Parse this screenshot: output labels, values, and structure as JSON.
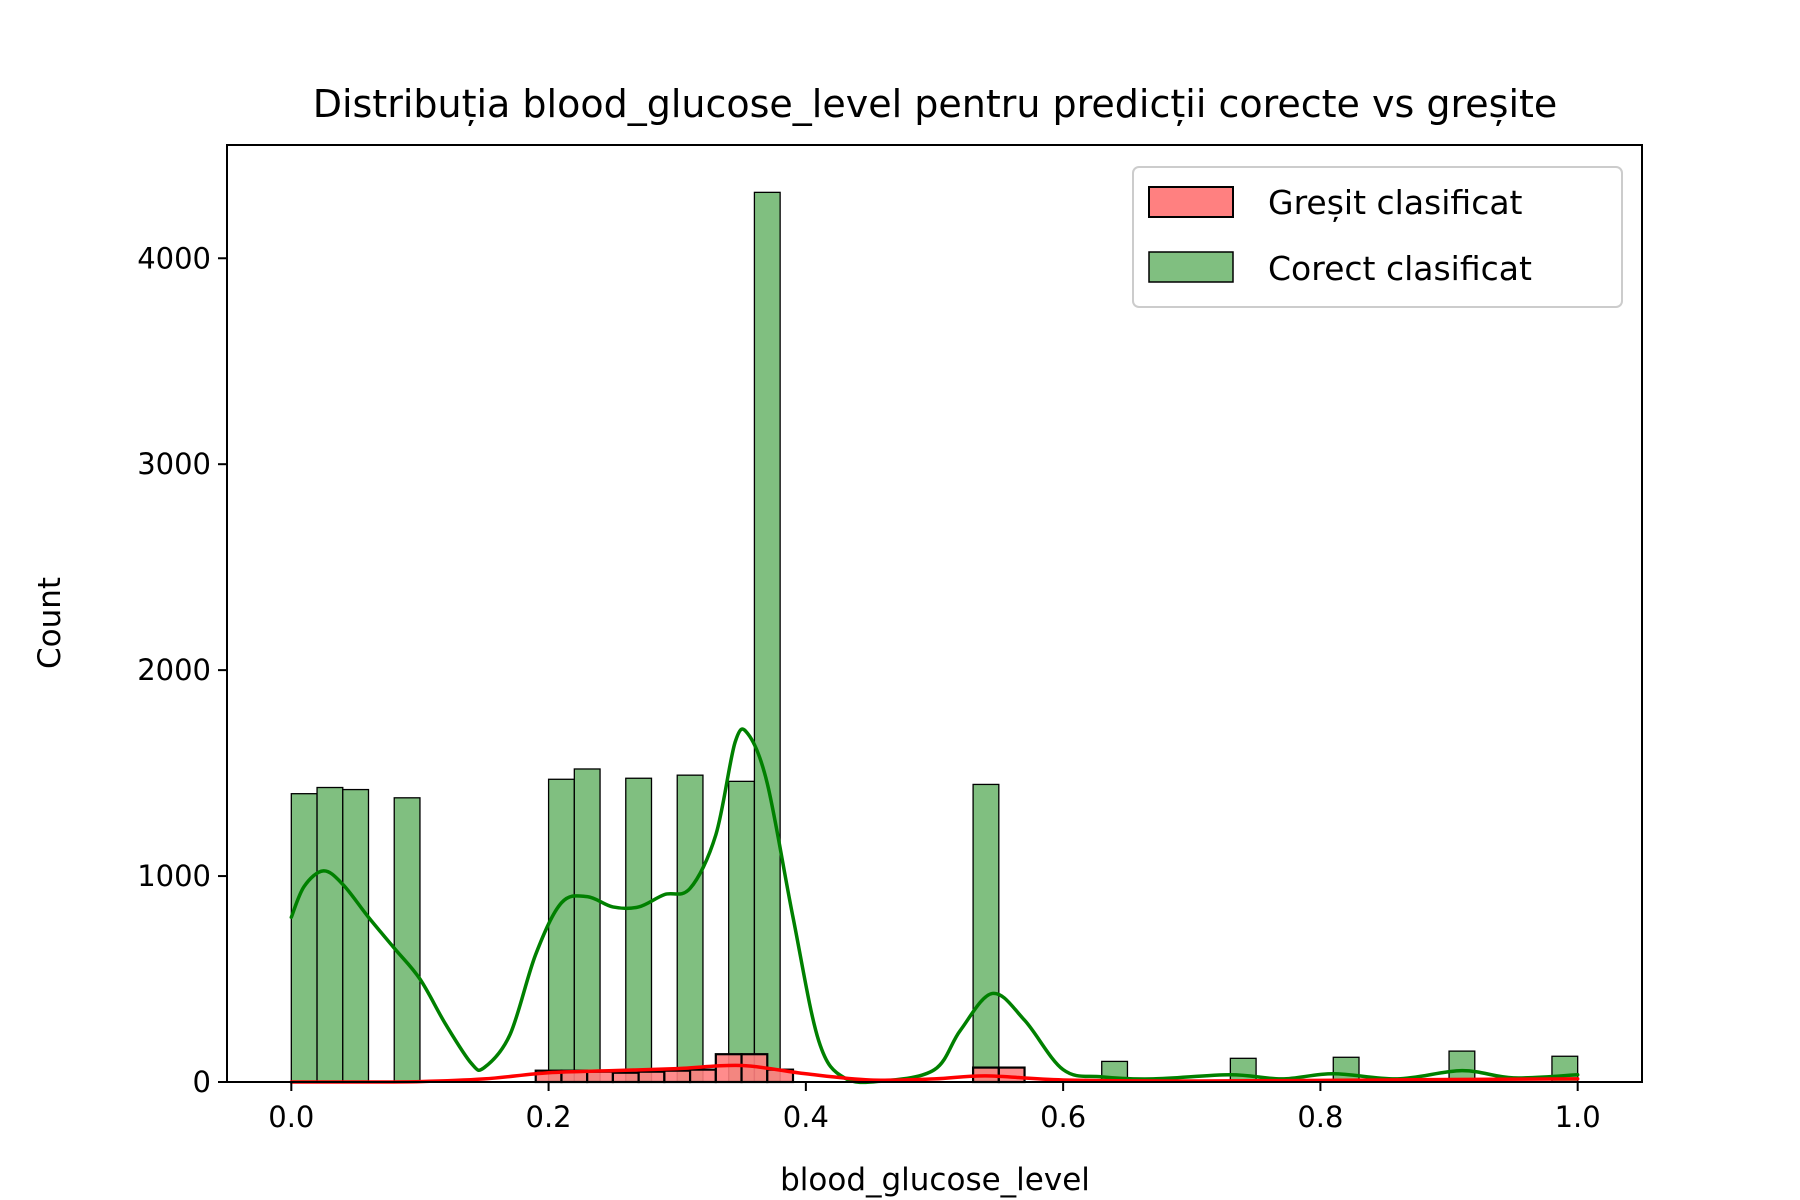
{
  "chart_data": {
    "type": "bar",
    "title": "Distribuția blood_glucose_level pentru predicții corecte vs greșite",
    "xlabel": "blood_glucose_level",
    "ylabel": "Count",
    "xlim": [
      -0.05,
      1.05
    ],
    "ylim": [
      0,
      4550
    ],
    "xticks": [
      "0.0",
      "0.2",
      "0.4",
      "0.6",
      "0.8",
      "1.0"
    ],
    "xtick_values": [
      0.0,
      0.2,
      0.4,
      0.6,
      0.8,
      1.0
    ],
    "yticks": [
      "0",
      "1000",
      "2000",
      "3000",
      "4000"
    ],
    "ytick_values": [
      0,
      1000,
      2000,
      3000,
      4000
    ],
    "bin_width": 0.02,
    "legend_position": "upper right",
    "series": [
      {
        "name": "Greșit clasificat",
        "fill": "#ff8080",
        "edge": "#000000",
        "kde_color": "#ff0000",
        "bins": [
          {
            "x": 0.19,
            "count": 55
          },
          {
            "x": 0.21,
            "count": 55
          },
          {
            "x": 0.23,
            "count": 50
          },
          {
            "x": 0.25,
            "count": 45
          },
          {
            "x": 0.27,
            "count": 50
          },
          {
            "x": 0.29,
            "count": 55
          },
          {
            "x": 0.31,
            "count": 60
          },
          {
            "x": 0.33,
            "count": 135
          },
          {
            "x": 0.35,
            "count": 135
          },
          {
            "x": 0.37,
            "count": 60
          },
          {
            "x": 0.53,
            "count": 70
          },
          {
            "x": 0.55,
            "count": 70
          }
        ],
        "kde": [
          [
            0.0,
            0
          ],
          [
            0.05,
            0
          ],
          [
            0.1,
            2
          ],
          [
            0.15,
            15
          ],
          [
            0.2,
            45
          ],
          [
            0.25,
            55
          ],
          [
            0.3,
            65
          ],
          [
            0.35,
            80
          ],
          [
            0.4,
            40
          ],
          [
            0.45,
            10
          ],
          [
            0.5,
            15
          ],
          [
            0.54,
            30
          ],
          [
            0.6,
            10
          ],
          [
            0.7,
            5
          ],
          [
            0.8,
            8
          ],
          [
            0.9,
            12
          ],
          [
            1.0,
            15
          ]
        ]
      },
      {
        "name": "Corect clasificat",
        "fill": "#80bf80",
        "edge": "#000000",
        "kde_color": "#008000",
        "bins": [
          {
            "x": 0.0,
            "count": 1400
          },
          {
            "x": 0.02,
            "count": 1430
          },
          {
            "x": 0.04,
            "count": 1420
          },
          {
            "x": 0.08,
            "count": 1380
          },
          {
            "x": 0.2,
            "count": 1470
          },
          {
            "x": 0.22,
            "count": 1520
          },
          {
            "x": 0.26,
            "count": 1475
          },
          {
            "x": 0.3,
            "count": 1490
          },
          {
            "x": 0.34,
            "count": 1460
          },
          {
            "x": 0.36,
            "count": 4320
          },
          {
            "x": 0.53,
            "count": 1445
          },
          {
            "x": 0.63,
            "count": 100
          },
          {
            "x": 0.73,
            "count": 115
          },
          {
            "x": 0.81,
            "count": 120
          },
          {
            "x": 0.9,
            "count": 150
          },
          {
            "x": 0.98,
            "count": 125
          }
        ],
        "kde": [
          [
            0.0,
            800
          ],
          [
            0.01,
            950
          ],
          [
            0.025,
            1025
          ],
          [
            0.04,
            960
          ],
          [
            0.06,
            800
          ],
          [
            0.08,
            650
          ],
          [
            0.1,
            500
          ],
          [
            0.12,
            280
          ],
          [
            0.14,
            90
          ],
          [
            0.15,
            70
          ],
          [
            0.17,
            230
          ],
          [
            0.19,
            620
          ],
          [
            0.21,
            870
          ],
          [
            0.23,
            900
          ],
          [
            0.25,
            850
          ],
          [
            0.27,
            850
          ],
          [
            0.29,
            910
          ],
          [
            0.31,
            940
          ],
          [
            0.33,
            1200
          ],
          [
            0.345,
            1650
          ],
          [
            0.355,
            1690
          ],
          [
            0.37,
            1450
          ],
          [
            0.39,
            800
          ],
          [
            0.41,
            200
          ],
          [
            0.43,
            20
          ],
          [
            0.46,
            5
          ],
          [
            0.5,
            60
          ],
          [
            0.52,
            250
          ],
          [
            0.545,
            430
          ],
          [
            0.57,
            300
          ],
          [
            0.6,
            60
          ],
          [
            0.63,
            25
          ],
          [
            0.67,
            15
          ],
          [
            0.73,
            35
          ],
          [
            0.77,
            15
          ],
          [
            0.81,
            40
          ],
          [
            0.86,
            15
          ],
          [
            0.91,
            55
          ],
          [
            0.95,
            20
          ],
          [
            1.0,
            35
          ]
        ]
      }
    ]
  }
}
